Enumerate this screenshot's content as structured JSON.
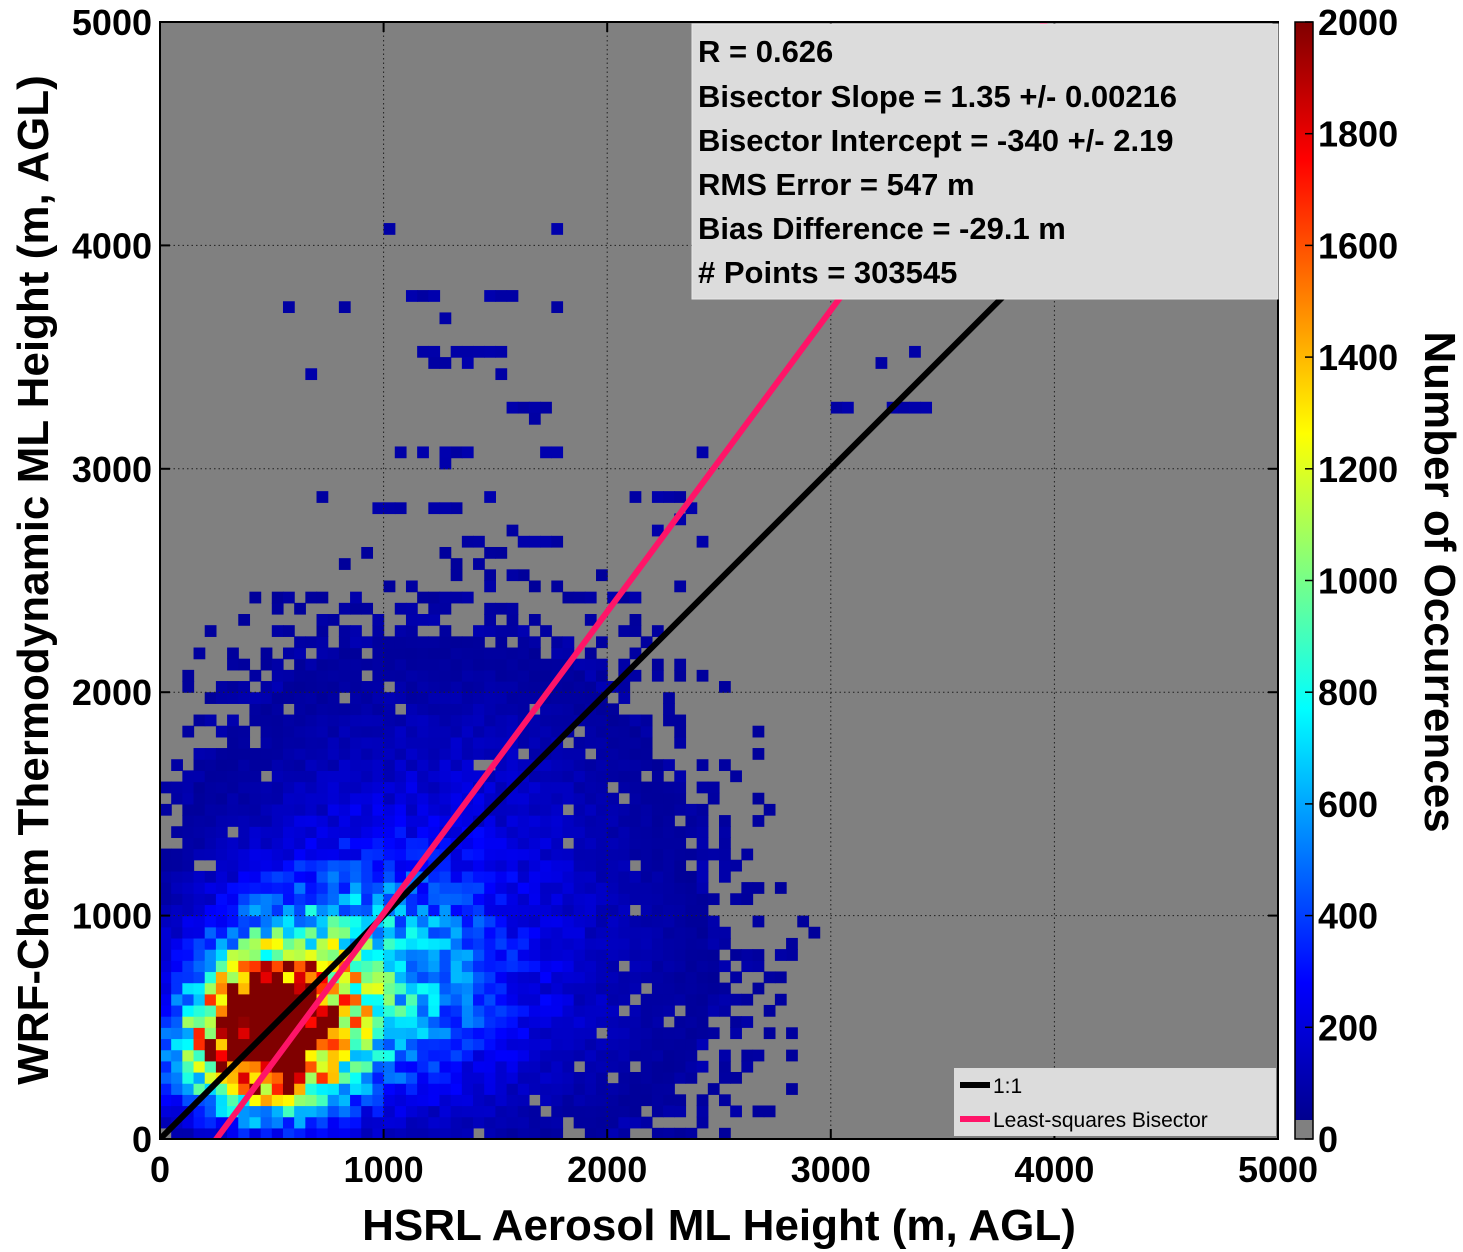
{
  "chart_data": {
    "type": "heatmap",
    "xlabel": "HSRL Aerosol ML Height (m, AGL)",
    "ylabel": "WRF-Chem Thermodynamic ML Height (m, AGL)",
    "xlim": [
      0,
      5000
    ],
    "ylim": [
      0,
      5000
    ],
    "x_ticks": [
      "0",
      "1000",
      "2000",
      "3000",
      "4000",
      "5000"
    ],
    "y_ticks": [
      "0",
      "1000",
      "2000",
      "3000",
      "4000",
      "5000"
    ],
    "grid": "dotted",
    "background_color": "#808080",
    "bin_size": 50,
    "colorbar": {
      "label": "Number of Occurrences",
      "range": [
        0,
        2000
      ],
      "ticks": [
        "0",
        "200",
        "400",
        "600",
        "800",
        "1000",
        "1200",
        "1400",
        "1600",
        "1800",
        "2000"
      ],
      "colormap": "jet",
      "zero_color": "#808080"
    },
    "stats": [
      "R = 0.626",
      "Bisector Slope = 1.35 +/- 0.00216",
      "Bisector Intercept = -340 +/- 2.19",
      "RMS Error = 547 m",
      "Bias Difference = -29.1 m",
      "# Points = 303545"
    ],
    "lines": [
      {
        "name": "1:1",
        "slope": 1.0,
        "intercept": 0,
        "color": "#000000"
      },
      {
        "name": "Least-squares Bisector",
        "slope": 1.35,
        "intercept": -340,
        "color": "#ff1468"
      }
    ],
    "legend_position": "bottom-right",
    "stats_box_position": "top-right",
    "density_clusters": [
      {
        "x": 500,
        "y": 500,
        "sx": 210,
        "sy": 210,
        "peak": 2300
      },
      {
        "x": 350,
        "y": 360,
        "sx": 230,
        "sy": 150,
        "peak": 700
      },
      {
        "x": 800,
        "y": 700,
        "sx": 380,
        "sy": 320,
        "peak": 700
      },
      {
        "x": 1250,
        "y": 1250,
        "sx": 550,
        "sy": 520,
        "peak": 170
      },
      {
        "x": 1300,
        "y": 600,
        "sx": 600,
        "sy": 380,
        "peak": 120
      }
    ],
    "sparse_points": [
      [
        1000,
        4050
      ],
      [
        1750,
        4050
      ],
      [
        550,
        3700
      ],
      [
        800,
        3700
      ],
      [
        1100,
        3750
      ],
      [
        1150,
        3750
      ],
      [
        1200,
        3750
      ],
      [
        1450,
        3750
      ],
      [
        1500,
        3750
      ],
      [
        1550,
        3750
      ],
      [
        1750,
        3700
      ],
      [
        1250,
        3650
      ],
      [
        1150,
        3500
      ],
      [
        1200,
        3500
      ],
      [
        1300,
        3500
      ],
      [
        1350,
        3500
      ],
      [
        1400,
        3500
      ],
      [
        1450,
        3500
      ],
      [
        1500,
        3500
      ],
      [
        1200,
        3450
      ],
      [
        1250,
        3450
      ],
      [
        1350,
        3450
      ],
      [
        1500,
        3400
      ],
      [
        650,
        3400
      ],
      [
        1550,
        3250
      ],
      [
        1600,
        3250
      ],
      [
        1650,
        3250
      ],
      [
        1700,
        3250
      ],
      [
        1650,
        3200
      ],
      [
        1050,
        3050
      ],
      [
        1150,
        3050
      ],
      [
        1250,
        3050
      ],
      [
        1300,
        3050
      ],
      [
        1350,
        3050
      ],
      [
        1700,
        3050
      ],
      [
        1750,
        3050
      ],
      [
        1250,
        3000
      ],
      [
        1450,
        2850
      ],
      [
        700,
        2850
      ],
      [
        950,
        2800
      ],
      [
        1000,
        2800
      ],
      [
        1050,
        2800
      ],
      [
        1200,
        2800
      ],
      [
        1250,
        2800
      ],
      [
        1300,
        2800
      ],
      [
        1550,
        2700
      ],
      [
        1600,
        2650
      ],
      [
        1650,
        2650
      ],
      [
        1700,
        2650
      ],
      [
        1750,
        2650
      ],
      [
        1350,
        2650
      ],
      [
        1400,
        2650
      ],
      [
        1400,
        2550
      ],
      [
        1450,
        2500
      ],
      [
        1450,
        2450
      ],
      [
        1550,
        2500
      ],
      [
        1600,
        2500
      ],
      [
        800,
        2550
      ],
      [
        850,
        2400
      ],
      [
        550,
        2400
      ],
      [
        2400,
        3050
      ],
      [
        2100,
        2850
      ],
      [
        2200,
        2850
      ],
      [
        2250,
        2850
      ],
      [
        2300,
        2850
      ],
      [
        2350,
        2800
      ],
      [
        2300,
        2750
      ],
      [
        2200,
        2700
      ],
      [
        2400,
        2650
      ],
      [
        2300,
        2450
      ],
      [
        2000,
        2400
      ],
      [
        2100,
        2400
      ],
      [
        1900,
        2400
      ],
      [
        3000,
        3250
      ],
      [
        3050,
        3250
      ],
      [
        3250,
        3250
      ],
      [
        3300,
        3250
      ],
      [
        3350,
        3250
      ],
      [
        3400,
        3250
      ],
      [
        3200,
        3450
      ],
      [
        3350,
        3500
      ],
      [
        2800,
        800
      ],
      [
        2750,
        800
      ],
      [
        2550,
        100
      ],
      [
        2250,
        100
      ],
      [
        2200,
        300
      ],
      [
        2300,
        300
      ],
      [
        2250,
        250
      ],
      [
        2350,
        250
      ],
      [
        2150,
        500
      ],
      [
        2300,
        400
      ],
      [
        2100,
        900
      ],
      [
        2050,
        1100
      ],
      [
        2050,
        700
      ],
      [
        2000,
        900
      ]
    ]
  }
}
